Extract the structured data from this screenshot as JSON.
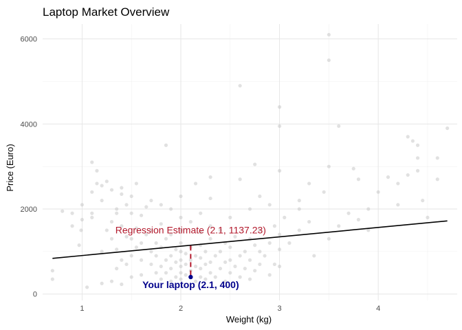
{
  "chart_data": {
    "type": "scatter",
    "title": "Laptop Market Overview",
    "xlabel": "Weight (kg)",
    "ylabel": "Price (Euro)",
    "xlim": [
      0.6,
      4.8
    ],
    "ylim": [
      -150,
      6350
    ],
    "x_ticks": [
      1,
      2,
      3,
      4
    ],
    "y_ticks": [
      0,
      2000,
      4000,
      6000
    ],
    "x_tick_labels": [
      "1",
      "2",
      "3",
      "4"
    ],
    "y_tick_labels": [
      "0",
      "2000",
      "4000",
      "6000"
    ],
    "grid": true,
    "legend": "none",
    "colors": {
      "points": "#bdbdbd",
      "regression": "#000000",
      "estimate": "#b2182b",
      "highlight": "#00008b"
    },
    "regression_line": {
      "x": [
        0.7,
        4.7
      ],
      "y": [
        840,
        1720
      ]
    },
    "estimate_point": {
      "x": 2.1,
      "y": 1137.23,
      "label": "Regression Estimate (2.1, 1137.23)"
    },
    "highlight_point": {
      "x": 2.1,
      "y": 400,
      "label": "Your laptop (2.1, 400)"
    },
    "scatter_points": [
      [
        0.7,
        550
      ],
      [
        0.7,
        350
      ],
      [
        0.8,
        1950
      ],
      [
        0.9,
        1600
      ],
      [
        0.9,
        1900
      ],
      [
        0.97,
        1150
      ],
      [
        0.99,
        1500
      ],
      [
        1.0,
        2100
      ],
      [
        1.05,
        160
      ],
      [
        1.1,
        1800
      ],
      [
        1.1,
        1900
      ],
      [
        1.1,
        2400
      ],
      [
        1.1,
        3100
      ],
      [
        1.15,
        2600
      ],
      [
        1.2,
        1000
      ],
      [
        1.2,
        2200
      ],
      [
        1.2,
        2550
      ],
      [
        1.2,
        250
      ],
      [
        1.25,
        1500
      ],
      [
        1.25,
        2650
      ],
      [
        1.3,
        1300
      ],
      [
        1.3,
        1700
      ],
      [
        1.3,
        2450
      ],
      [
        1.3,
        300
      ],
      [
        1.35,
        1900
      ],
      [
        1.35,
        2000
      ],
      [
        1.35,
        1050
      ],
      [
        1.35,
        600
      ],
      [
        1.4,
        2350
      ],
      [
        1.4,
        2500
      ],
      [
        1.4,
        1600
      ],
      [
        1.4,
        800
      ],
      [
        1.4,
        230
      ],
      [
        1.45,
        1350
      ],
      [
        1.45,
        700
      ],
      [
        1.45,
        2100
      ],
      [
        1.5,
        1900
      ],
      [
        1.5,
        1300
      ],
      [
        1.5,
        900
      ],
      [
        1.5,
        2300
      ],
      [
        1.5,
        400
      ],
      [
        1.55,
        1550
      ],
      [
        1.55,
        1100
      ],
      [
        1.55,
        2600
      ],
      [
        1.6,
        1200
      ],
      [
        1.6,
        800
      ],
      [
        1.6,
        1850
      ],
      [
        1.6,
        450
      ],
      [
        1.65,
        2050
      ],
      [
        1.65,
        1400
      ],
      [
        1.7,
        700
      ],
      [
        1.7,
        1000
      ],
      [
        1.7,
        1500
      ],
      [
        1.7,
        2200
      ],
      [
        1.75,
        500
      ],
      [
        1.75,
        900
      ],
      [
        1.75,
        1200
      ],
      [
        1.8,
        350
      ],
      [
        1.8,
        650
      ],
      [
        1.8,
        1100
      ],
      [
        1.8,
        1650
      ],
      [
        1.8,
        2100
      ],
      [
        1.85,
        800
      ],
      [
        1.85,
        500
      ],
      [
        1.85,
        1300
      ],
      [
        1.9,
        300
      ],
      [
        1.9,
        600
      ],
      [
        1.9,
        900
      ],
      [
        1.9,
        1400
      ],
      [
        1.9,
        2000
      ],
      [
        1.95,
        400
      ],
      [
        1.95,
        750
      ],
      [
        1.95,
        1050
      ],
      [
        2.0,
        350
      ],
      [
        2.0,
        500
      ],
      [
        2.0,
        650
      ],
      [
        2.0,
        800
      ],
      [
        2.0,
        1000
      ],
      [
        2.0,
        1200
      ],
      [
        2.0,
        1500
      ],
      [
        2.0,
        1800
      ],
      [
        2.0,
        2300
      ],
      [
        2.05,
        450
      ],
      [
        2.05,
        700
      ],
      [
        2.05,
        950
      ],
      [
        2.1,
        550
      ],
      [
        2.1,
        800
      ],
      [
        2.1,
        1100
      ],
      [
        2.1,
        1700
      ],
      [
        2.15,
        300
      ],
      [
        2.15,
        650
      ],
      [
        2.15,
        900
      ],
      [
        2.15,
        2600
      ],
      [
        2.2,
        400
      ],
      [
        2.2,
        600
      ],
      [
        2.2,
        850
      ],
      [
        2.2,
        1150
      ],
      [
        2.2,
        1450
      ],
      [
        2.2,
        1900
      ],
      [
        2.25,
        350
      ],
      [
        2.25,
        700
      ],
      [
        2.25,
        1000
      ],
      [
        2.3,
        500
      ],
      [
        2.3,
        750
      ],
      [
        2.3,
        1300
      ],
      [
        2.3,
        1600
      ],
      [
        2.3,
        2250
      ],
      [
        2.35,
        400
      ],
      [
        2.35,
        900
      ],
      [
        2.4,
        600
      ],
      [
        2.4,
        1000
      ],
      [
        2.4,
        1500
      ],
      [
        2.45,
        300
      ],
      [
        2.45,
        750
      ],
      [
        2.45,
        1200
      ],
      [
        2.5,
        500
      ],
      [
        2.5,
        800
      ],
      [
        2.5,
        1100
      ],
      [
        2.5,
        1800
      ],
      [
        2.55,
        650
      ],
      [
        2.55,
        1350
      ],
      [
        2.6,
        400
      ],
      [
        2.6,
        900
      ],
      [
        2.6,
        2700
      ],
      [
        2.65,
        600
      ],
      [
        2.65,
        1000
      ],
      [
        2.7,
        350
      ],
      [
        2.7,
        800
      ],
      [
        2.7,
        1300
      ],
      [
        2.7,
        2000
      ],
      [
        2.75,
        550
      ],
      [
        2.75,
        1150
      ],
      [
        2.8,
        700
      ],
      [
        2.8,
        1000
      ],
      [
        2.8,
        1500
      ],
      [
        2.8,
        2300
      ],
      [
        2.85,
        900
      ],
      [
        2.9,
        450
      ],
      [
        2.9,
        1200
      ],
      [
        2.9,
        2100
      ],
      [
        2.95,
        700
      ],
      [
        2.95,
        1600
      ],
      [
        3.0,
        650
      ],
      [
        3.0,
        1050
      ],
      [
        3.0,
        1400
      ],
      [
        3.0,
        2900
      ],
      [
        3.0,
        3950
      ],
      [
        3.0,
        4400
      ],
      [
        3.05,
        1800
      ],
      [
        3.1,
        1200
      ],
      [
        3.2,
        1500
      ],
      [
        3.2,
        2200
      ],
      [
        3.3,
        1700
      ],
      [
        3.3,
        2600
      ],
      [
        3.35,
        900
      ],
      [
        3.45,
        2400
      ],
      [
        3.5,
        1300
      ],
      [
        3.5,
        3000
      ],
      [
        3.5,
        5500
      ],
      [
        3.5,
        6100
      ],
      [
        3.6,
        1600
      ],
      [
        3.6,
        3950
      ],
      [
        3.7,
        1900
      ],
      [
        3.8,
        1750
      ],
      [
        3.8,
        2700
      ],
      [
        3.9,
        1500
      ],
      [
        3.9,
        2000
      ],
      [
        4.0,
        2400
      ],
      [
        4.1,
        2750
      ],
      [
        4.2,
        2100
      ],
      [
        4.2,
        2600
      ],
      [
        4.3,
        2800
      ],
      [
        4.35,
        3600
      ],
      [
        4.4,
        2900
      ],
      [
        4.4,
        3200
      ],
      [
        4.4,
        3500
      ],
      [
        4.45,
        2200
      ],
      [
        4.5,
        1800
      ],
      [
        4.6,
        2700
      ],
      [
        4.6,
        3200
      ],
      [
        4.7,
        3900
      ],
      [
        2.6,
        4900
      ],
      [
        1.85,
        3500
      ],
      [
        2.3,
        2750
      ],
      [
        3.75,
        2950
      ],
      [
        4.3,
        3700
      ],
      [
        1.0,
        1750
      ],
      [
        1.15,
        2900
      ],
      [
        2.75,
        3050
      ],
      [
        3.2,
        2000
      ]
    ]
  }
}
